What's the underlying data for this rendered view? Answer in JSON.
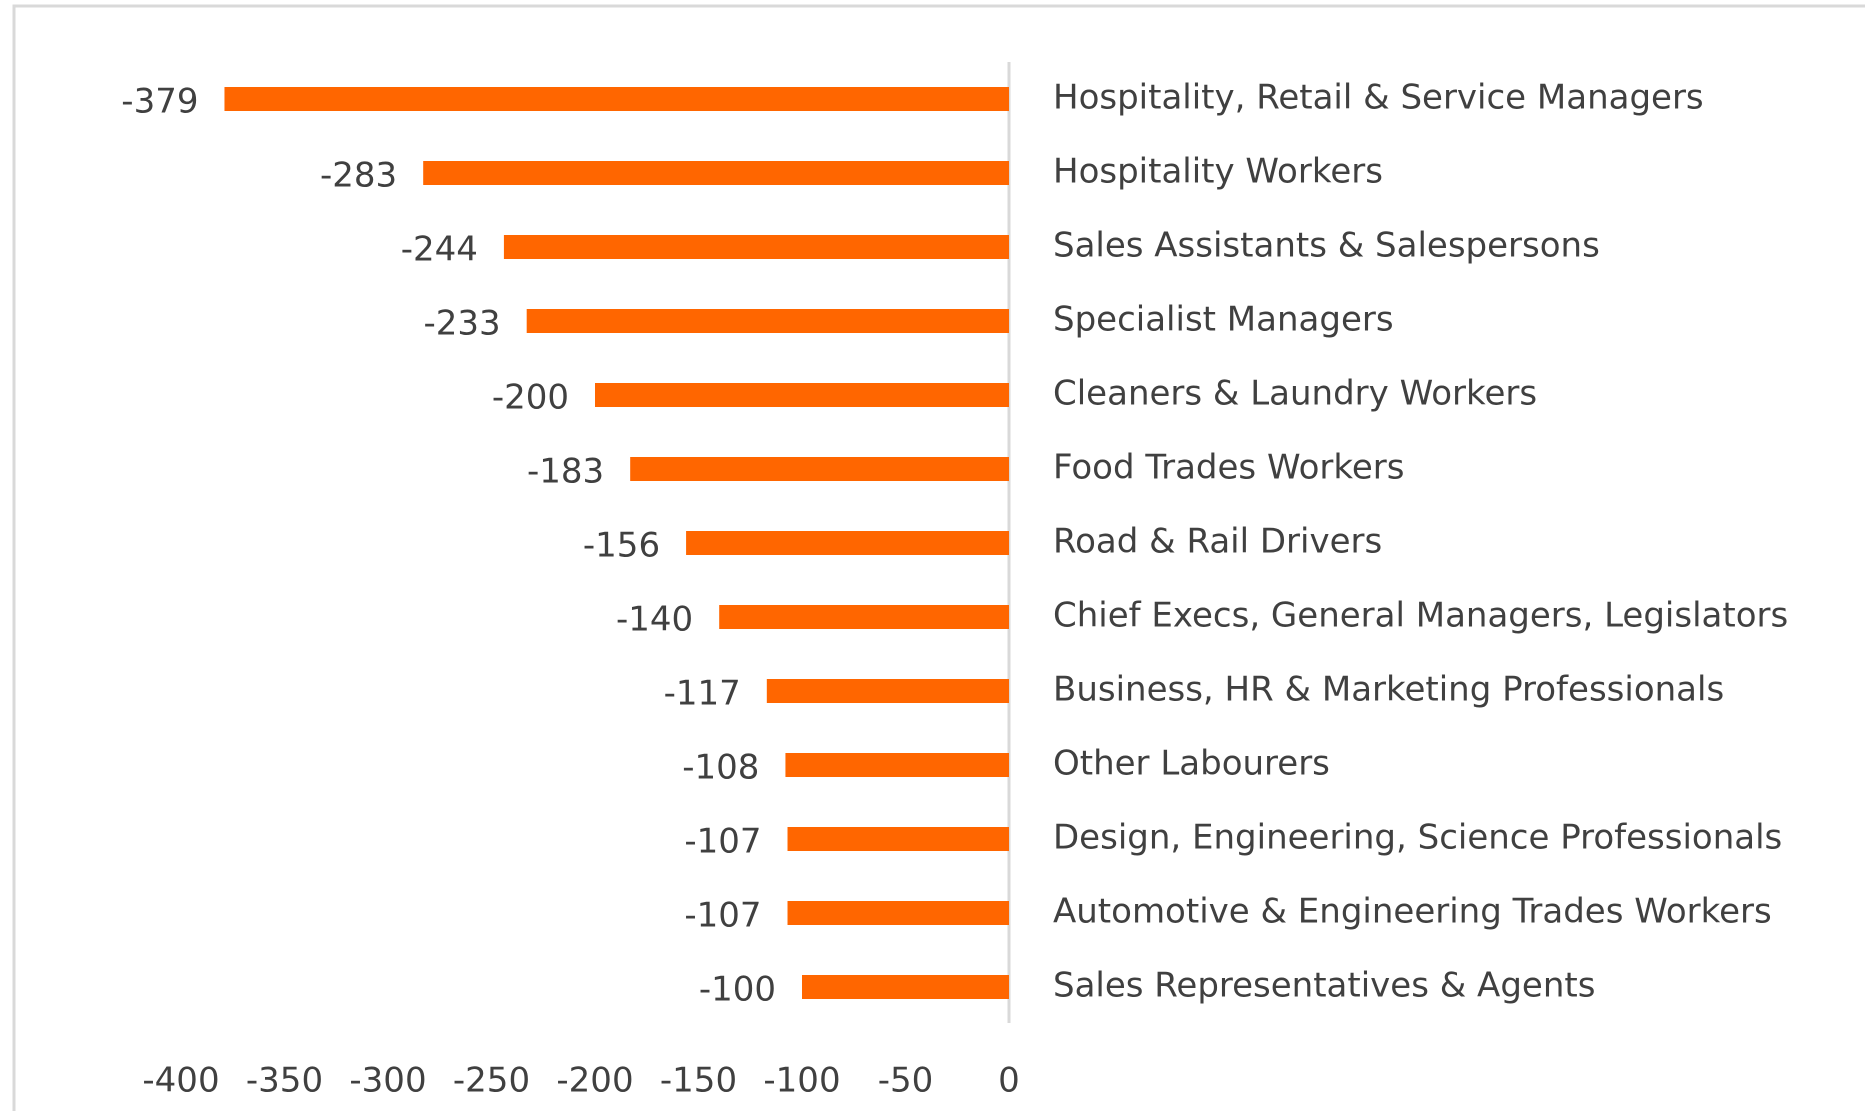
{
  "chart_data": {
    "type": "bar",
    "orientation": "horizontal",
    "categories": [
      "Hospitality, Retail & Service Managers",
      "Hospitality Workers",
      "Sales Assistants & Salespersons",
      "Specialist Managers",
      "Cleaners & Laundry Workers",
      "Food Trades Workers",
      "Road & Rail Drivers",
      "Chief Execs, General Managers, Legislators",
      "Business, HR & Marketing Professionals",
      "Other Labourers",
      "Design, Engineering, Science Professionals",
      "Automotive & Engineering Trades Workers",
      "Sales Representatives & Agents"
    ],
    "values": [
      -379,
      -283,
      -244,
      -233,
      -200,
      -183,
      -156,
      -140,
      -117,
      -108,
      -107,
      -107,
      -100
    ],
    "color": "#ff6600",
    "xlim": [
      -400,
      0
    ],
    "xticks": [
      -400,
      -350,
      -300,
      -250,
      -200,
      -150,
      -100,
      -50,
      0
    ],
    "grid": false
  }
}
